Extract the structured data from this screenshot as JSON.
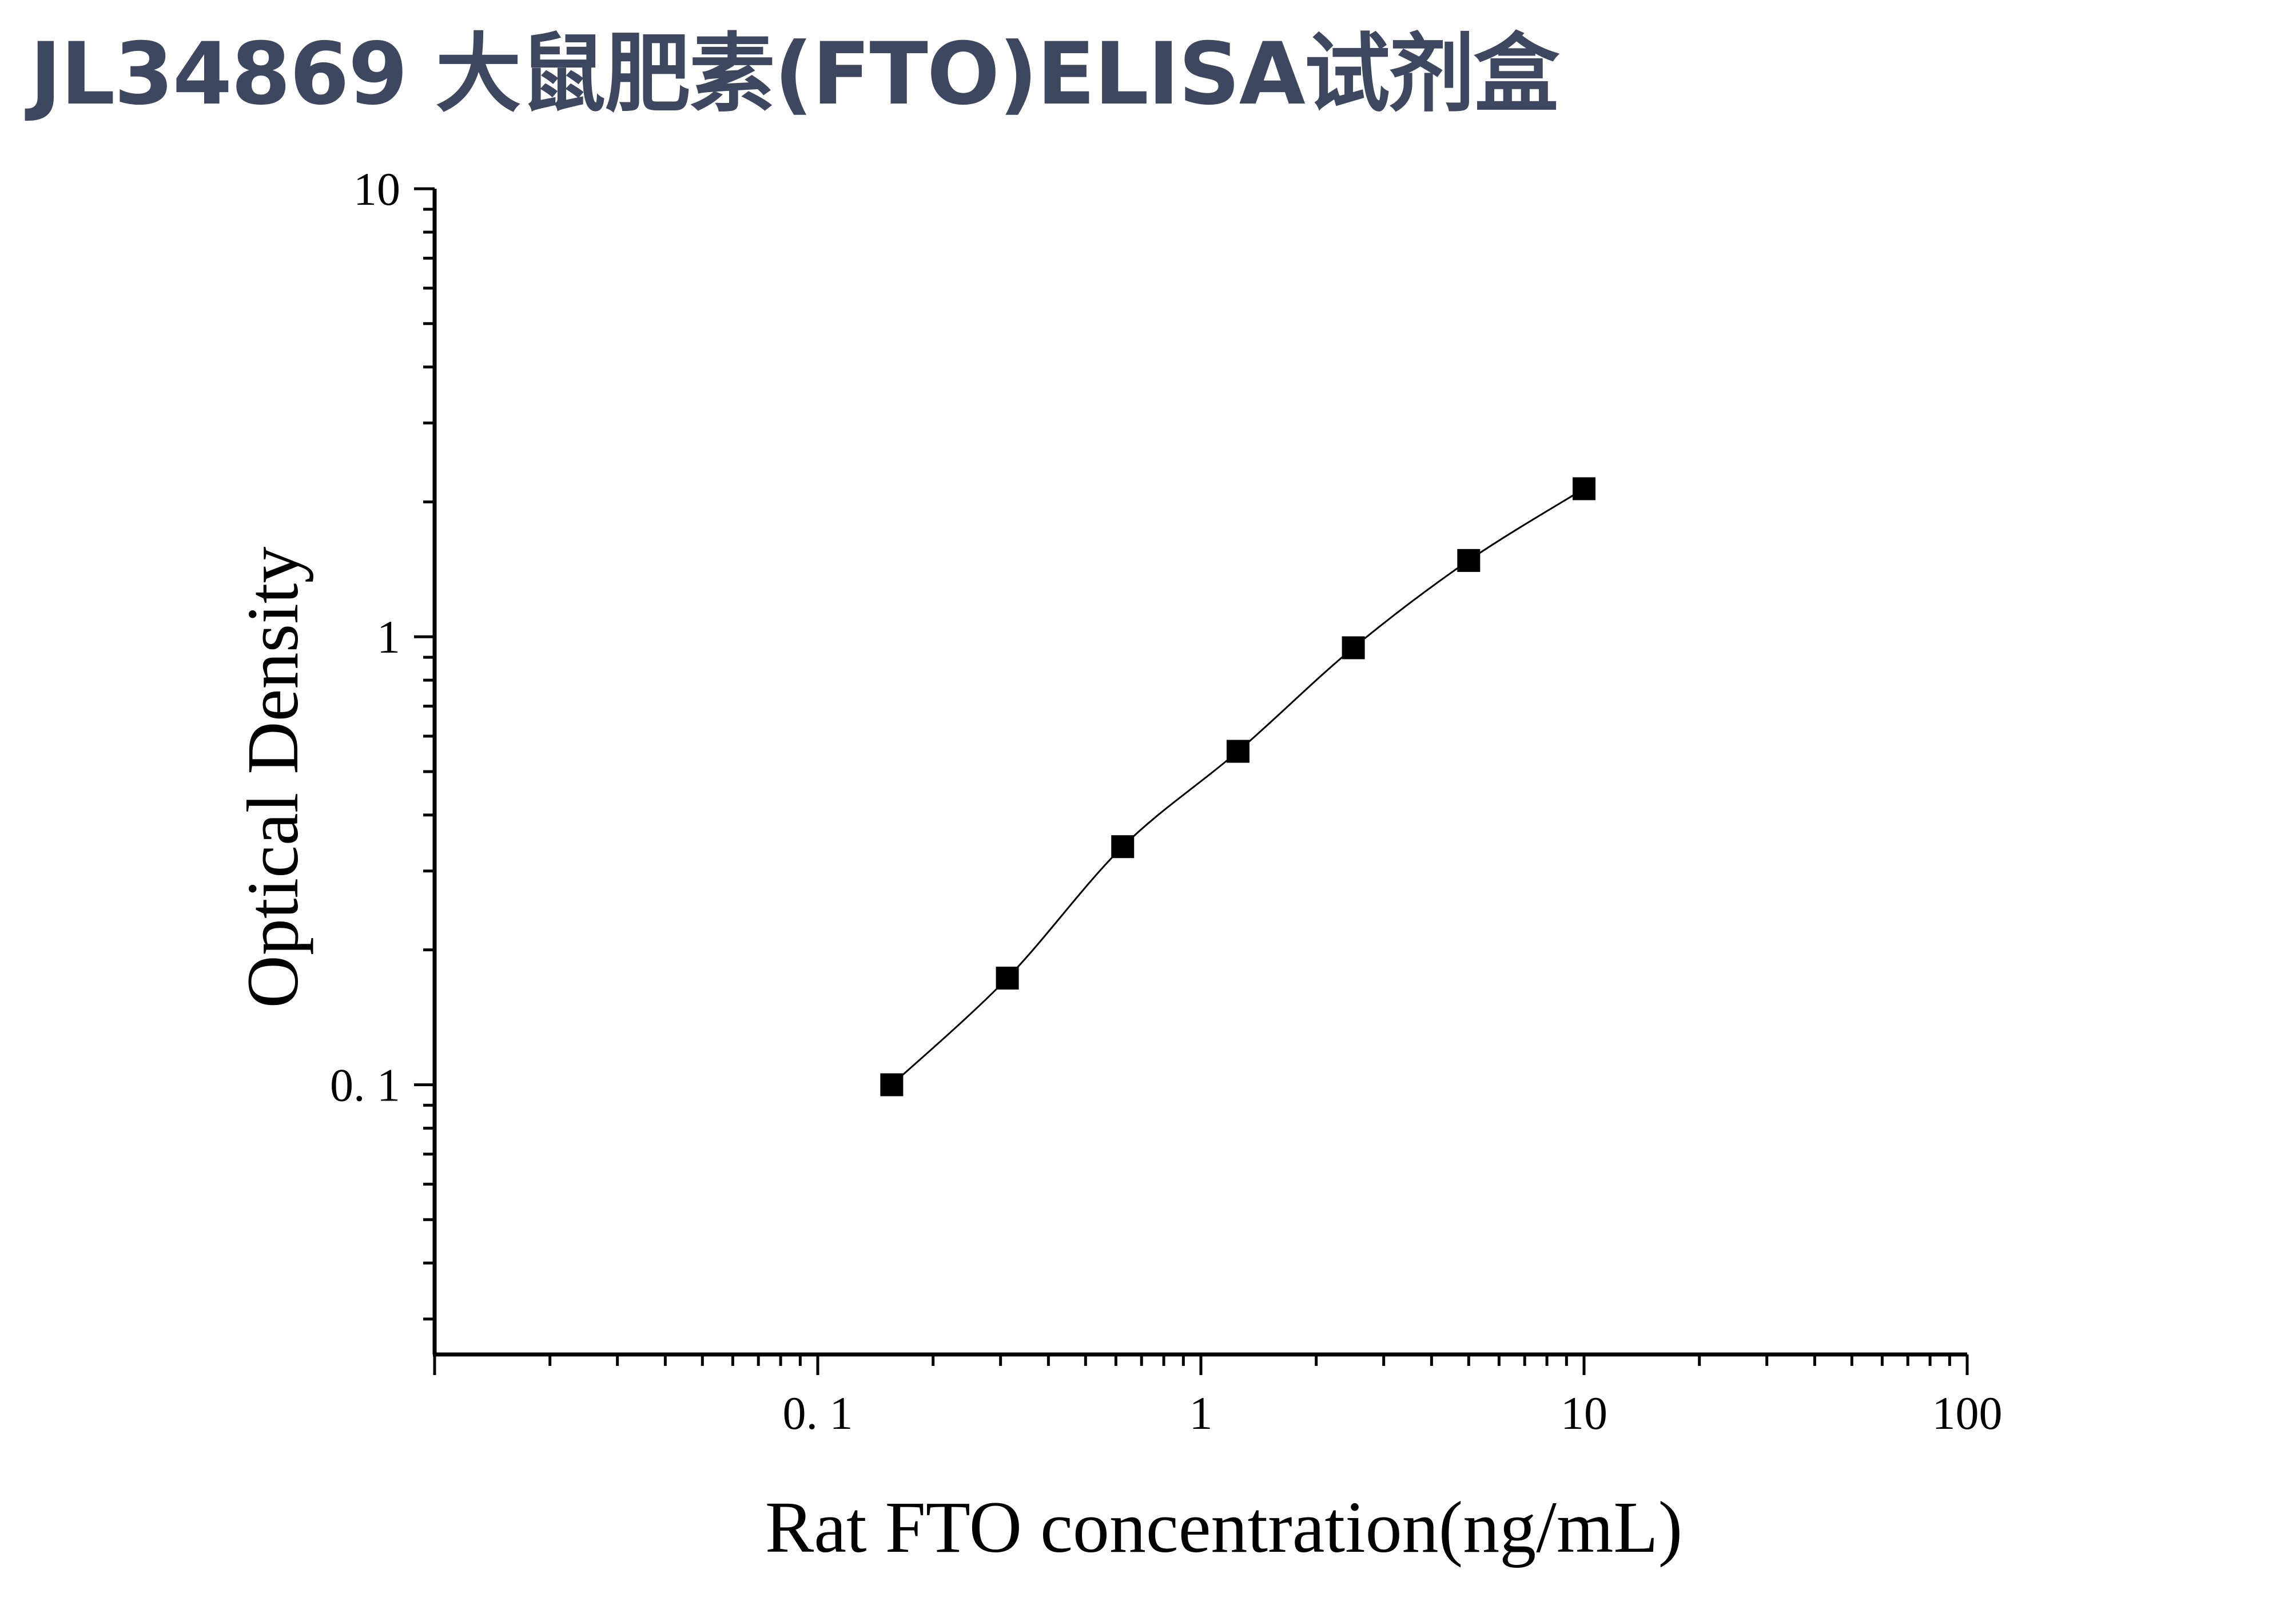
{
  "page": {
    "title": "JL34869 大鼠肥素(FTO)ELISA试剂盒"
  },
  "colors": {
    "title": "#3d475f",
    "axis": "#000000",
    "marker": "#000000",
    "curve": "#000000"
  },
  "chart_data": {
    "type": "scatter",
    "title": "",
    "xlabel": "Rat FTO concentration(ng/mL)",
    "ylabel": "Optical Density",
    "x_scale": "log",
    "y_scale": "log",
    "xlim": [
      0.01,
      100
    ],
    "ylim": [
      0.025,
      10
    ],
    "x_ticks": [
      {
        "value": 0.1,
        "label": "0. 1"
      },
      {
        "value": 1,
        "label": "1"
      },
      {
        "value": 10,
        "label": "10"
      },
      {
        "value": 100,
        "label": "100"
      }
    ],
    "y_ticks": [
      {
        "value": 0.1,
        "label": "0. 1"
      },
      {
        "value": 1,
        "label": "1"
      },
      {
        "value": 10,
        "label": "10"
      }
    ],
    "grid": false,
    "legend": "none",
    "series": [
      {
        "marker": "square",
        "fit_line": true,
        "x": [
          0.156,
          0.3125,
          0.625,
          1.25,
          2.5,
          5,
          10
        ],
        "y": [
          0.1,
          0.173,
          0.34,
          0.555,
          0.945,
          1.48,
          2.14
        ]
      }
    ]
  }
}
